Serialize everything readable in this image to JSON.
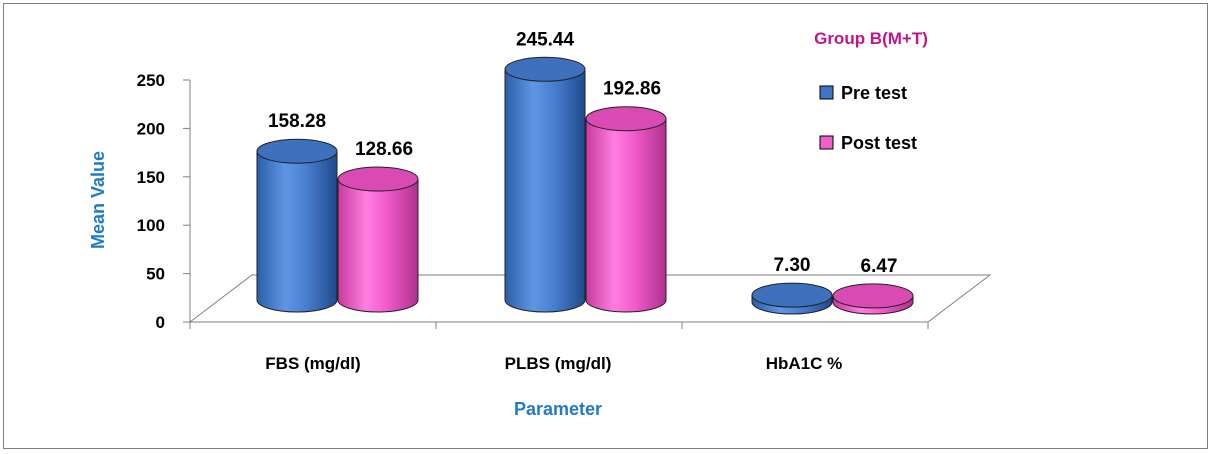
{
  "chart_data": {
    "type": "bar",
    "style": "3d-cylinder",
    "categories": [
      "FBS (mg/dl)",
      "PLBS (mg/dl)",
      "HbA1C %"
    ],
    "series": [
      {
        "name": "Pre test",
        "values": [
          158.28,
          245.44,
          7.3
        ],
        "labels": [
          "158.28",
          "245.44",
          "7.30"
        ],
        "color": "#4a7fd0"
      },
      {
        "name": "Post test",
        "values": [
          128.66,
          192.86,
          6.47
        ],
        "labels": [
          "128.66",
          "192.86",
          "6.47"
        ],
        "color": "#f060c8"
      }
    ],
    "legend_title": "Group B(M+T)",
    "legend_placement": "right",
    "xlabel": "Parameter",
    "ylabel": "Mean Value",
    "ylim": [
      0,
      250
    ],
    "yticks": [
      "0",
      "50",
      "100",
      "150",
      "200",
      "250"
    ],
    "grid": false,
    "colors": {
      "axis_title": "#1f7ac8",
      "legend_title": "#c0148c"
    }
  }
}
